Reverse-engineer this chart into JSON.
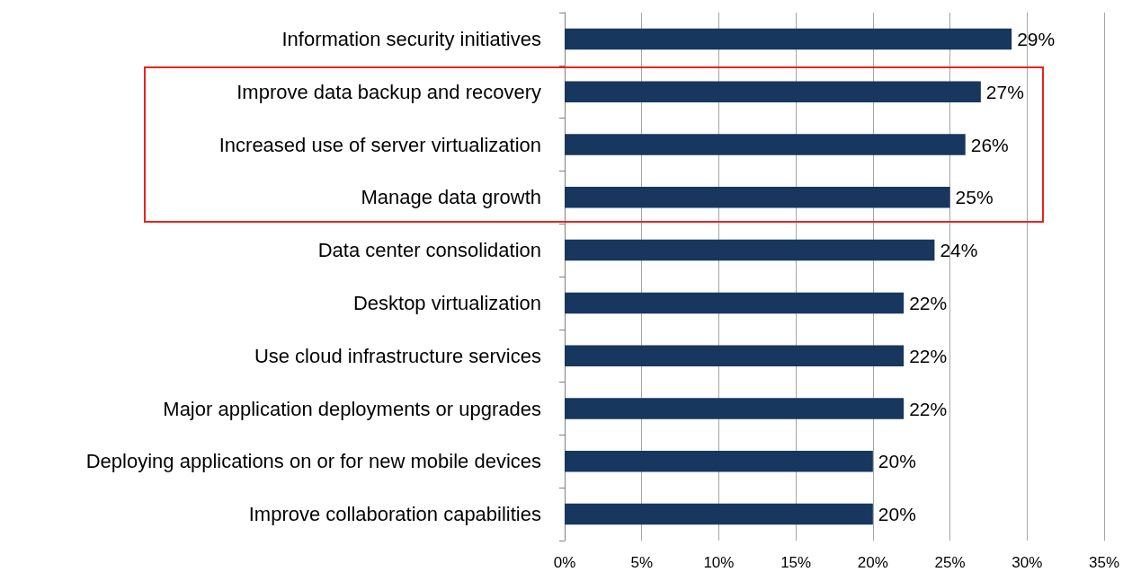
{
  "chart_data": {
    "type": "bar",
    "orientation": "horizontal",
    "categories": [
      "Information security initiatives",
      "Improve data backup and recovery",
      "Increased use of server virtualization",
      "Manage data growth",
      "Data center consolidation",
      "Desktop virtualization",
      "Use cloud infrastructure services",
      "Major application deployments or upgrades",
      "Deploying applications on or for new mobile devices",
      "Improve collaboration capabilities"
    ],
    "values": [
      29,
      27,
      26,
      25,
      24,
      22,
      22,
      22,
      20,
      20
    ],
    "value_labels": [
      "29%",
      "27%",
      "26%",
      "25%",
      "24%",
      "22%",
      "22%",
      "22%",
      "20%",
      "20%"
    ],
    "color": "#17375e",
    "xlim": [
      0,
      35
    ],
    "xticks": [
      {
        "value": 0,
        "label": "0%"
      },
      {
        "value": 5,
        "label": "5%"
      },
      {
        "value": 10,
        "label": "10%"
      },
      {
        "value": 15,
        "label": "15%"
      },
      {
        "value": 20,
        "label": "20%"
      },
      {
        "value": 25,
        "label": "25%"
      },
      {
        "value": 30,
        "label": "30%"
      },
      {
        "value": 35,
        "label": "35%"
      }
    ],
    "grid": "x"
  }
}
